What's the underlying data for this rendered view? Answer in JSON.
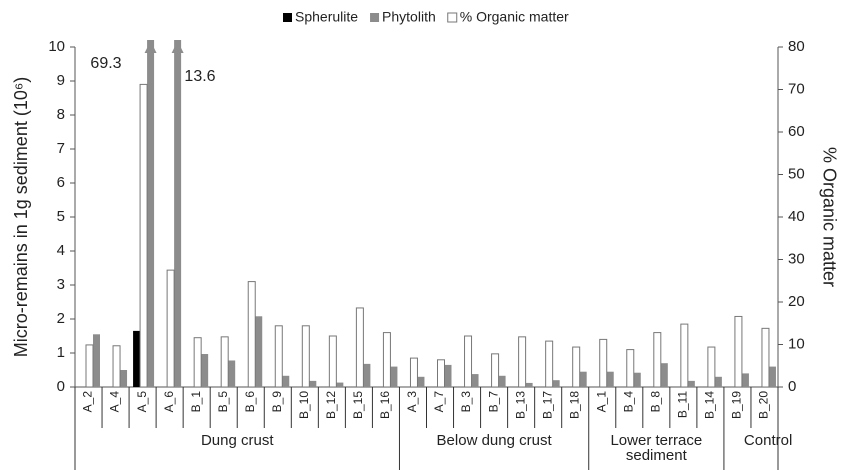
{
  "chart_data": {
    "type": "bar",
    "groups": [
      {
        "label": "Dung crust",
        "categories": [
          "A_2",
          "A_4",
          "A_5",
          "A_6",
          "B_1",
          "B_5",
          "B_6",
          "B_9",
          "B_10",
          "B_12",
          "B_15",
          "B_16"
        ]
      },
      {
        "label": "Below dung crust",
        "categories": [
          "A_3",
          "A_7",
          "B_3",
          "B_7",
          "B_13",
          "B_17",
          "B_18"
        ]
      },
      {
        "label": "Lower terrace sediment",
        "categories": [
          "A_1",
          "B_4",
          "B_8",
          "B_11",
          "B_14"
        ]
      },
      {
        "label": "Control",
        "categories": [
          "B_19",
          "B_20"
        ]
      }
    ],
    "series": [
      {
        "name": "Spherulite",
        "color": "#000000",
        "values": [
          0,
          0,
          1.65,
          0,
          0,
          0,
          0,
          0,
          0,
          0,
          0,
          0,
          0,
          0,
          0,
          0,
          0,
          0,
          0,
          0,
          0,
          0,
          0,
          0,
          0,
          0
        ]
      },
      {
        "name": "Phytolith",
        "color": "#8c8c8c",
        "values": [
          1.55,
          0.5,
          69.3,
          13.6,
          0.97,
          0.78,
          2.08,
          0.33,
          0.18,
          0.13,
          0.68,
          0.6,
          0.3,
          0.65,
          0.38,
          0.33,
          0.12,
          0.2,
          0.45,
          0.45,
          0.42,
          0.7,
          0.18,
          0.3,
          0.4,
          0.6
        ]
      },
      {
        "name": "% Organic matter",
        "color": "#ffffff",
        "axis": "y2",
        "values": [
          9.9,
          9.7,
          71.2,
          27.5,
          11.6,
          11.8,
          24.8,
          14.4,
          14.4,
          12,
          18.6,
          12.8,
          6.8,
          6.4,
          12,
          7.8,
          11.8,
          10.8,
          9.4,
          11.2,
          8.8,
          12.8,
          14.8,
          9.4,
          16.6,
          13.8
        ]
      }
    ],
    "bar_order": [
      "Spherulite",
      "% Organic matter",
      "Phytolith"
    ],
    "ylabel": "Micro-remains in 1g sediment (10⁶)",
    "y2label": "% Organic matter",
    "ylim": [
      0,
      10
    ],
    "yticks": [
      0,
      1,
      2,
      3,
      4,
      5,
      6,
      7,
      8,
      9,
      10
    ],
    "y2lim": [
      0,
      80
    ],
    "y2ticks": [
      0,
      10,
      20,
      30,
      40,
      50,
      60,
      70,
      80
    ],
    "annotations": [
      "69.3",
      "13.6"
    ],
    "legend": "top"
  }
}
